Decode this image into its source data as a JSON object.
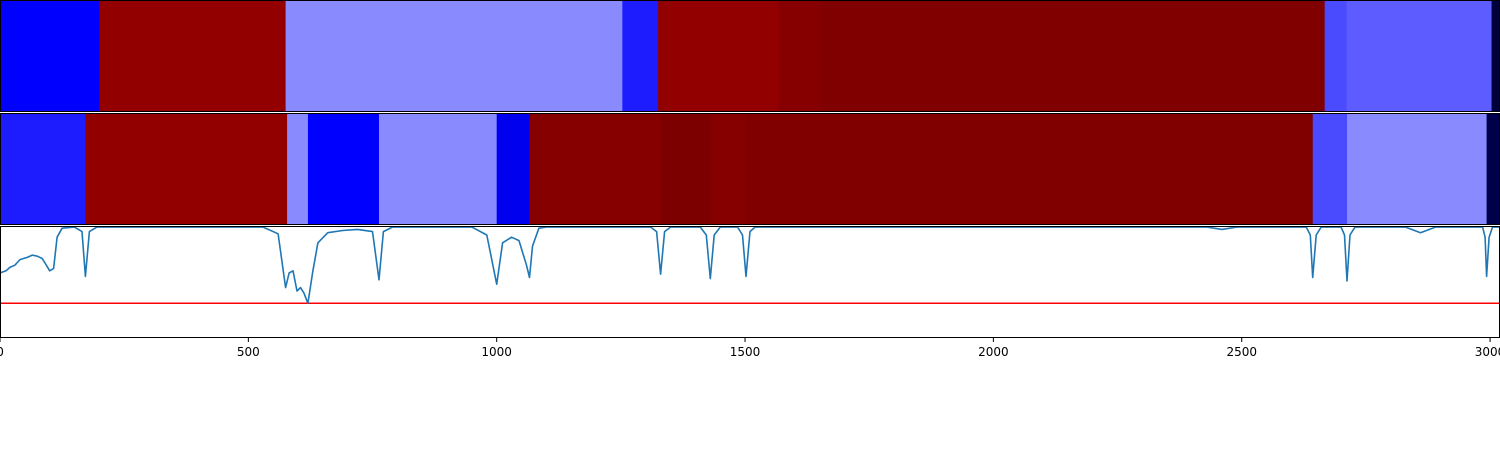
{
  "chart_data": [
    {
      "type": "heatmap",
      "x_range": [
        0,
        3020
      ],
      "colormap": "seismic",
      "segments": [
        {
          "x0": 0,
          "x1": 200,
          "color": "#0000ff"
        },
        {
          "x0": 200,
          "x1": 575,
          "color": "#920000"
        },
        {
          "x0": 575,
          "x1": 1253,
          "color": "#8a8aff"
        },
        {
          "x0": 1253,
          "x1": 1325,
          "color": "#1c1cff"
        },
        {
          "x0": 1325,
          "x1": 1568,
          "color": "#920000"
        },
        {
          "x0": 1568,
          "x1": 1652,
          "color": "#860000"
        },
        {
          "x0": 1652,
          "x1": 2667,
          "color": "#800000"
        },
        {
          "x0": 2667,
          "x1": 2711,
          "color": "#4a4aff"
        },
        {
          "x0": 2711,
          "x1": 3003,
          "color": "#5c5cff"
        },
        {
          "x0": 3003,
          "x1": 3020,
          "color": "#00003c"
        }
      ]
    },
    {
      "type": "heatmap",
      "x_range": [
        0,
        3020
      ],
      "colormap": "seismic",
      "segments": [
        {
          "x0": 0,
          "x1": 172,
          "color": "#1c1cff"
        },
        {
          "x0": 172,
          "x1": 578,
          "color": "#920000"
        },
        {
          "x0": 578,
          "x1": 620,
          "color": "#8a8aff"
        },
        {
          "x0": 620,
          "x1": 763,
          "color": "#0000ff"
        },
        {
          "x0": 763,
          "x1": 1000,
          "color": "#8a8aff"
        },
        {
          "x0": 1000,
          "x1": 1066,
          "color": "#0000ee"
        },
        {
          "x0": 1066,
          "x1": 1330,
          "color": "#860000"
        },
        {
          "x0": 1330,
          "x1": 1430,
          "color": "#7c0000"
        },
        {
          "x0": 1430,
          "x1": 1502,
          "color": "#860000"
        },
        {
          "x0": 1502,
          "x1": 2643,
          "color": "#800000"
        },
        {
          "x0": 2643,
          "x1": 2712,
          "color": "#4a4aff"
        },
        {
          "x0": 2712,
          "x1": 2993,
          "color": "#8a8aff"
        },
        {
          "x0": 2993,
          "x1": 3020,
          "color": "#00004a"
        }
      ]
    },
    {
      "type": "line",
      "x_range": [
        0,
        3020
      ],
      "y_range": [
        0,
        1
      ],
      "grid": false,
      "xticks": [
        0,
        500,
        1000,
        1500,
        2000,
        2500,
        3000
      ],
      "xtick_labels": [
        "0",
        "500",
        "1000",
        "1500",
        "2000",
        "2500",
        "3000"
      ],
      "threshold": {
        "y": 0.31,
        "color": "#ff0000"
      },
      "series": [
        {
          "color": "#1f77b4",
          "baseline": 1.0,
          "points": [
            [
              0,
              0.58
            ],
            [
              12,
              0.6
            ],
            [
              20,
              0.63
            ],
            [
              30,
              0.65
            ],
            [
              40,
              0.7
            ],
            [
              55,
              0.72
            ],
            [
              65,
              0.74
            ],
            [
              75,
              0.73
            ],
            [
              85,
              0.71
            ],
            [
              92,
              0.66
            ],
            [
              100,
              0.6
            ],
            [
              108,
              0.62
            ],
            [
              115,
              0.9
            ],
            [
              125,
              0.98
            ],
            [
              150,
              0.99
            ],
            [
              165,
              0.95
            ],
            [
              172,
              0.55
            ],
            [
              180,
              0.95
            ],
            [
              195,
              0.99
            ],
            [
              530,
              0.99
            ],
            [
              560,
              0.93
            ],
            [
              575,
              0.45
            ],
            [
              582,
              0.58
            ],
            [
              590,
              0.6
            ],
            [
              598,
              0.42
            ],
            [
              605,
              0.45
            ],
            [
              612,
              0.4
            ],
            [
              620,
              0.31
            ],
            [
              630,
              0.6
            ],
            [
              640,
              0.85
            ],
            [
              660,
              0.94
            ],
            [
              690,
              0.96
            ],
            [
              720,
              0.97
            ],
            [
              750,
              0.95
            ],
            [
              763,
              0.52
            ],
            [
              772,
              0.95
            ],
            [
              790,
              0.99
            ],
            [
              950,
              0.99
            ],
            [
              980,
              0.92
            ],
            [
              1000,
              0.48
            ],
            [
              1012,
              0.85
            ],
            [
              1030,
              0.9
            ],
            [
              1045,
              0.87
            ],
            [
              1060,
              0.65
            ],
            [
              1066,
              0.54
            ],
            [
              1072,
              0.82
            ],
            [
              1085,
              0.98
            ],
            [
              1100,
              0.99
            ],
            [
              1310,
              0.99
            ],
            [
              1322,
              0.95
            ],
            [
              1330,
              0.57
            ],
            [
              1338,
              0.95
            ],
            [
              1350,
              0.99
            ],
            [
              1410,
              0.99
            ],
            [
              1422,
              0.92
            ],
            [
              1430,
              0.53
            ],
            [
              1438,
              0.92
            ],
            [
              1450,
              0.99
            ],
            [
              1485,
              0.99
            ],
            [
              1495,
              0.92
            ],
            [
              1502,
              0.55
            ],
            [
              1510,
              0.95
            ],
            [
              1520,
              0.99
            ],
            [
              2430,
              0.99
            ],
            [
              2460,
              0.97
            ],
            [
              2490,
              0.99
            ],
            [
              2630,
              0.99
            ],
            [
              2638,
              0.92
            ],
            [
              2643,
              0.54
            ],
            [
              2650,
              0.92
            ],
            [
              2660,
              0.99
            ],
            [
              2700,
              0.99
            ],
            [
              2707,
              0.92
            ],
            [
              2712,
              0.51
            ],
            [
              2718,
              0.92
            ],
            [
              2728,
              0.99
            ],
            [
              2830,
              0.99
            ],
            [
              2860,
              0.94
            ],
            [
              2890,
              0.99
            ],
            [
              2985,
              0.99
            ],
            [
              2990,
              0.9
            ],
            [
              2993,
              0.55
            ],
            [
              2998,
              0.9
            ],
            [
              3005,
              0.99
            ],
            [
              3020,
              0.99
            ]
          ]
        }
      ]
    }
  ]
}
